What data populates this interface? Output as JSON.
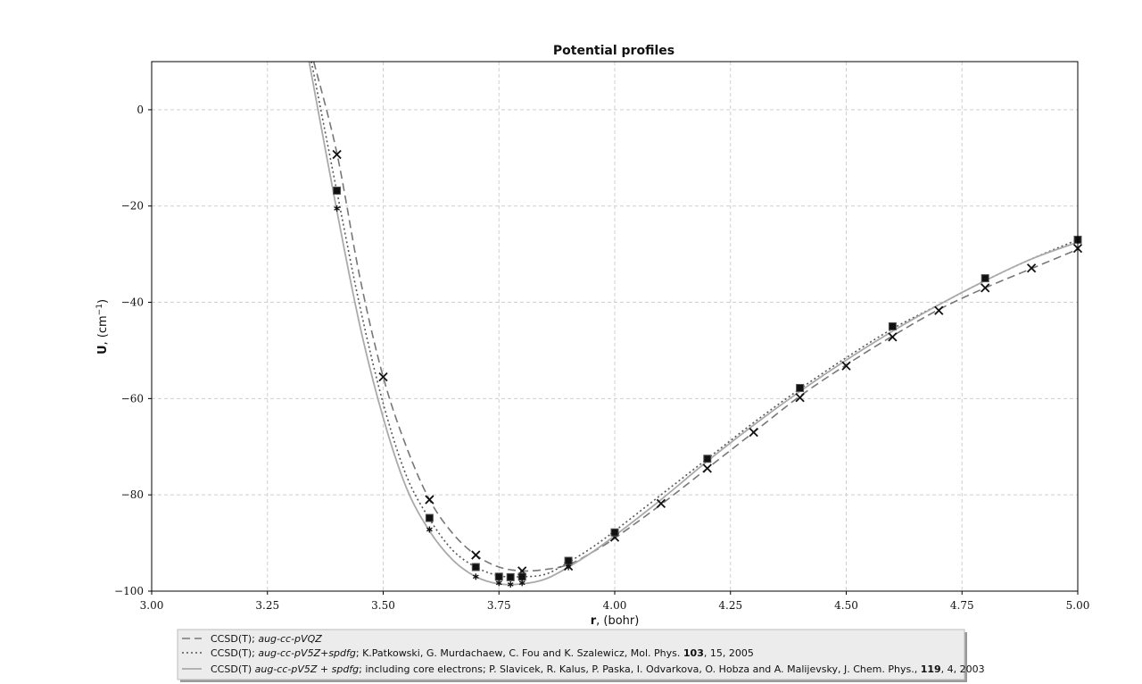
{
  "chart_data": {
    "type": "line",
    "title": "Potential profiles",
    "xlabel": "r, (bohr)",
    "ylabel": "U, (cm⁻¹)",
    "xlim": [
      3.0,
      5.0
    ],
    "ylim": [
      -100,
      10
    ],
    "xticks": [
      "3.00",
      "3.25",
      "3.50",
      "3.75",
      "4.00",
      "4.25",
      "4.50",
      "4.75",
      "5.00"
    ],
    "yticks": [
      "0",
      "−20",
      "−40",
      "−60",
      "−80",
      "−100"
    ],
    "grid": true,
    "legend_position": "bottom-left outside",
    "series": [
      {
        "name": "CCSD(T); aug-cc-pVQZ",
        "style": "dashed",
        "color": "#777777",
        "x": [
          3.35,
          3.4,
          3.45,
          3.5,
          3.55,
          3.6,
          3.65,
          3.7,
          3.75,
          3.8,
          3.85,
          3.9,
          3.95,
          4.0,
          4.1,
          4.2,
          4.3,
          4.4,
          4.5,
          4.6,
          4.7,
          4.8,
          4.9,
          5.0
        ],
        "y": [
          10,
          -9,
          -35,
          -55.5,
          -70,
          -81,
          -88,
          -92.5,
          -95,
          -95.8,
          -95.5,
          -94.5,
          -92,
          -89,
          -82,
          -74.5,
          -67,
          -59.5,
          -53,
          -47,
          -41.5,
          -37,
          -33,
          -29
        ],
        "markers_x": [
          3.4,
          3.5,
          3.6,
          3.7,
          3.8,
          3.9,
          4.0,
          4.1,
          4.2,
          4.3,
          4.4,
          4.5,
          4.6,
          4.7,
          4.8,
          4.9,
          5.0
        ],
        "markers_y": [
          -9.3,
          -55.5,
          -81,
          -92.5,
          -95.8,
          -94.8,
          -88.8,
          -81.8,
          -74.5,
          -67,
          -59.8,
          -53.2,
          -47.2,
          -41.7,
          -37,
          -32.9,
          -28.8
        ],
        "marker": "x"
      },
      {
        "name": "CCSD(T); aug-cc-pV5Z+spdfg; K.Patkowski, G. Murdachaew, C. Fou and K. Szalewicz, Mol. Phys. 103, 15, 2005",
        "style": "dotted",
        "color": "#555555",
        "x": [
          3.345,
          3.4,
          3.45,
          3.5,
          3.55,
          3.6,
          3.65,
          3.7,
          3.75,
          3.8,
          3.85,
          3.9,
          3.95,
          4.0,
          4.1,
          4.2,
          4.3,
          4.4,
          4.5,
          4.6,
          4.7,
          4.8,
          4.9,
          5.0
        ],
        "y": [
          10,
          -17,
          -41,
          -61,
          -76,
          -85,
          -91.5,
          -95,
          -96.8,
          -97,
          -96.5,
          -94,
          -91,
          -87.5,
          -80,
          -72.5,
          -65,
          -58,
          -51.5,
          -45.5,
          -40.5,
          -35.5,
          -31,
          -27
        ],
        "markers_x": [
          3.4,
          3.6,
          3.7,
          3.75,
          3.775,
          3.8,
          3.9,
          4.0,
          4.2,
          4.4,
          4.6,
          4.8,
          5.0
        ],
        "markers_y": [
          -16.8,
          -84.8,
          -95,
          -97,
          -97.1,
          -97,
          -93.7,
          -87.8,
          -72.5,
          -57.8,
          -45,
          -35,
          -27
        ],
        "marker": "s"
      },
      {
        "name": "CCSD(T) aug-cc-pV5Z + spdfg; including core electrons; P. Slavicek, R. Kalus, P. Paska, I. Odvarkova, O. Hobza and A. Malijevsky, J. Chem. Phys., 119, 4, 2003",
        "style": "solid",
        "color": "#aaaaaa",
        "x": [
          3.34,
          3.4,
          3.45,
          3.5,
          3.55,
          3.6,
          3.65,
          3.7,
          3.75,
          3.8,
          3.85,
          3.9,
          3.95,
          4.0,
          4.1,
          4.2,
          4.3,
          4.4,
          4.5,
          4.6,
          4.7,
          4.8,
          4.9,
          5.0
        ],
        "y": [
          10,
          -21,
          -45,
          -64,
          -78.5,
          -87.5,
          -93.5,
          -97,
          -98.5,
          -98.5,
          -97.5,
          -95,
          -92,
          -88.5,
          -81,
          -73,
          -65.5,
          -58.5,
          -52,
          -46,
          -40.5,
          -35.5,
          -31,
          -27.5
        ],
        "markers_x": [
          3.4,
          3.6,
          3.7,
          3.75,
          3.775,
          3.8,
          3.9
        ],
        "markers_y": [
          -20.5,
          -87.2,
          -97,
          -98.3,
          -98.6,
          -98.3,
          -95
        ],
        "marker": "*"
      }
    ],
    "legend": [
      {
        "plain": "CCSD(T); ",
        "italic": "aug-cc-pVQZ",
        "tail": "",
        "bold": "",
        "rest": ""
      },
      {
        "plain": "CCSD(T); ",
        "italic": "aug-cc-pV5Z+spdfg",
        "tail": "; K.Patkowski, G. Murdachaew, C. Fou and K. Szalewicz, Mol. Phys. ",
        "bold": "103",
        "rest": ", 15, 2005"
      },
      {
        "plain": "CCSD(T) ",
        "italic": "aug-cc-pV5Z + spdfg",
        "tail": "; including core electrons; P. Slavicek, R. Kalus, P. Paska, I. Odvarkova, O. Hobza and A. Malijevsky, J. Chem. Phys., ",
        "bold": "119",
        "rest": ", 4, 2003"
      }
    ]
  }
}
